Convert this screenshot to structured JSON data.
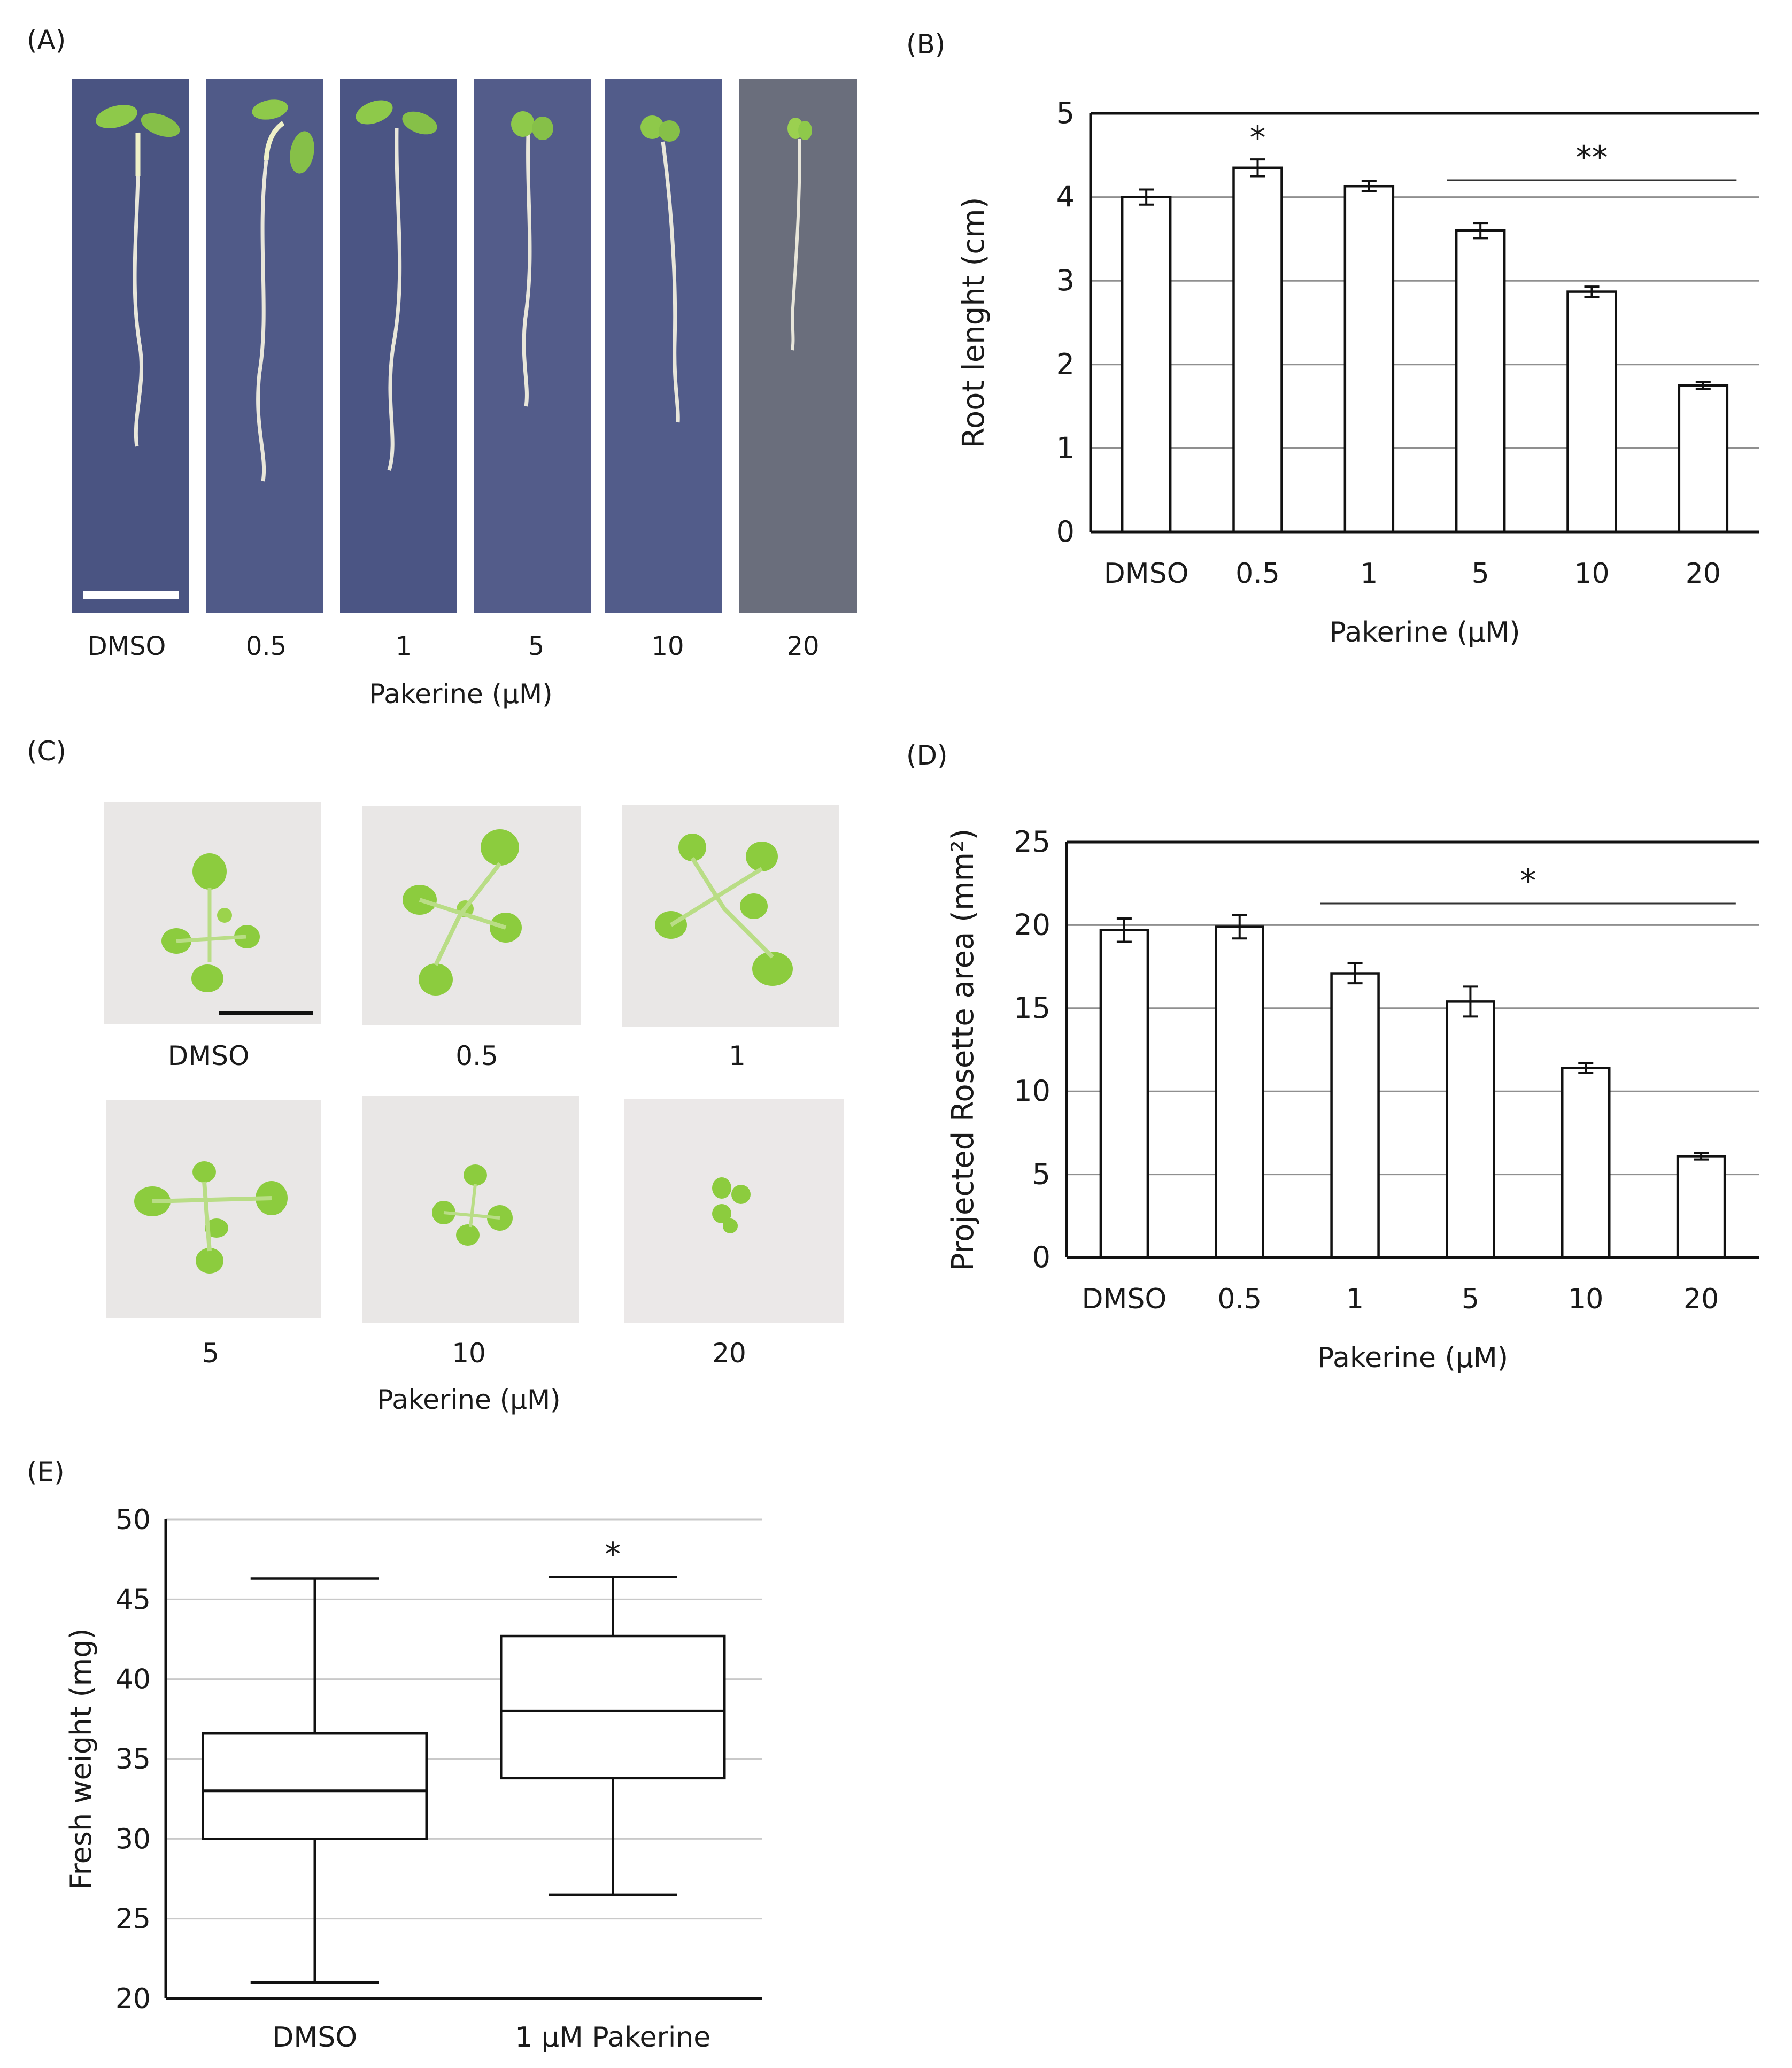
{
  "panels": {
    "a": {
      "label": "(A)",
      "categories": [
        "DMSO",
        "0.5",
        "1",
        "5",
        "10",
        "20"
      ],
      "xlabel": "Pakerine (µM)",
      "image_backgrounds": [
        "#4a5482",
        "#505a88",
        "#4b5584",
        "#535c8a",
        "#525c8a",
        "#6a6e7c"
      ]
    },
    "c": {
      "label": "(C)",
      "categories": [
        "DMSO",
        "0.5",
        "1",
        "5",
        "10",
        "20"
      ],
      "xlabel": "Pakerine (µM)"
    }
  },
  "chart_data": [
    {
      "panel": "(B)",
      "type": "bar",
      "categories": [
        "DMSO",
        "0.5",
        "1",
        "5",
        "10",
        "20"
      ],
      "values": [
        4.0,
        4.35,
        4.13,
        3.6,
        2.87,
        1.75
      ],
      "errors": [
        0.09,
        0.1,
        0.06,
        0.09,
        0.06,
        0.04
      ],
      "xlabel": "Pakerine (µM)",
      "ylabel": "Root lenght (cm)",
      "ylim": [
        0,
        5
      ],
      "yticks": [
        "0",
        "1",
        "2",
        "3",
        "4",
        "5"
      ],
      "grid": true,
      "annotations": [
        {
          "text": "*",
          "category": "0.5"
        },
        {
          "text": "**",
          "from": "5",
          "to": "20"
        }
      ]
    },
    {
      "panel": "(D)",
      "type": "bar",
      "categories": [
        "DMSO",
        "0.5",
        "1",
        "5",
        "10",
        "20"
      ],
      "values": [
        19.7,
        19.9,
        17.1,
        15.4,
        11.4,
        6.1
      ],
      "errors": [
        0.7,
        0.7,
        0.6,
        0.9,
        0.3,
        0.2
      ],
      "xlabel": "Pakerine (µM)",
      "ylabel": "Projected Rosette area (mm²)",
      "ylim": [
        0,
        25
      ],
      "yticks": [
        "0",
        "5",
        "10",
        "15",
        "20",
        "25"
      ],
      "grid": true,
      "annotations": [
        {
          "text": "*",
          "from": "1",
          "to": "20"
        }
      ]
    },
    {
      "panel": "(E)",
      "type": "box",
      "categories": [
        "DMSO",
        "1 µM Pakerine"
      ],
      "boxes": [
        {
          "min": 21.0,
          "q1": 30.0,
          "median": 33.0,
          "q3": 36.6,
          "max": 46.3
        },
        {
          "min": 26.5,
          "q1": 33.8,
          "median": 38.0,
          "q3": 42.7,
          "max": 46.4
        }
      ],
      "ylabel": "Fresh weight (mg)",
      "ylim": [
        20,
        50
      ],
      "yticks": [
        "20",
        "25",
        "30",
        "35",
        "40",
        "45",
        "50"
      ],
      "grid": true,
      "annotations": [
        {
          "text": "*",
          "category": "1 µM Pakerine"
        }
      ]
    }
  ]
}
